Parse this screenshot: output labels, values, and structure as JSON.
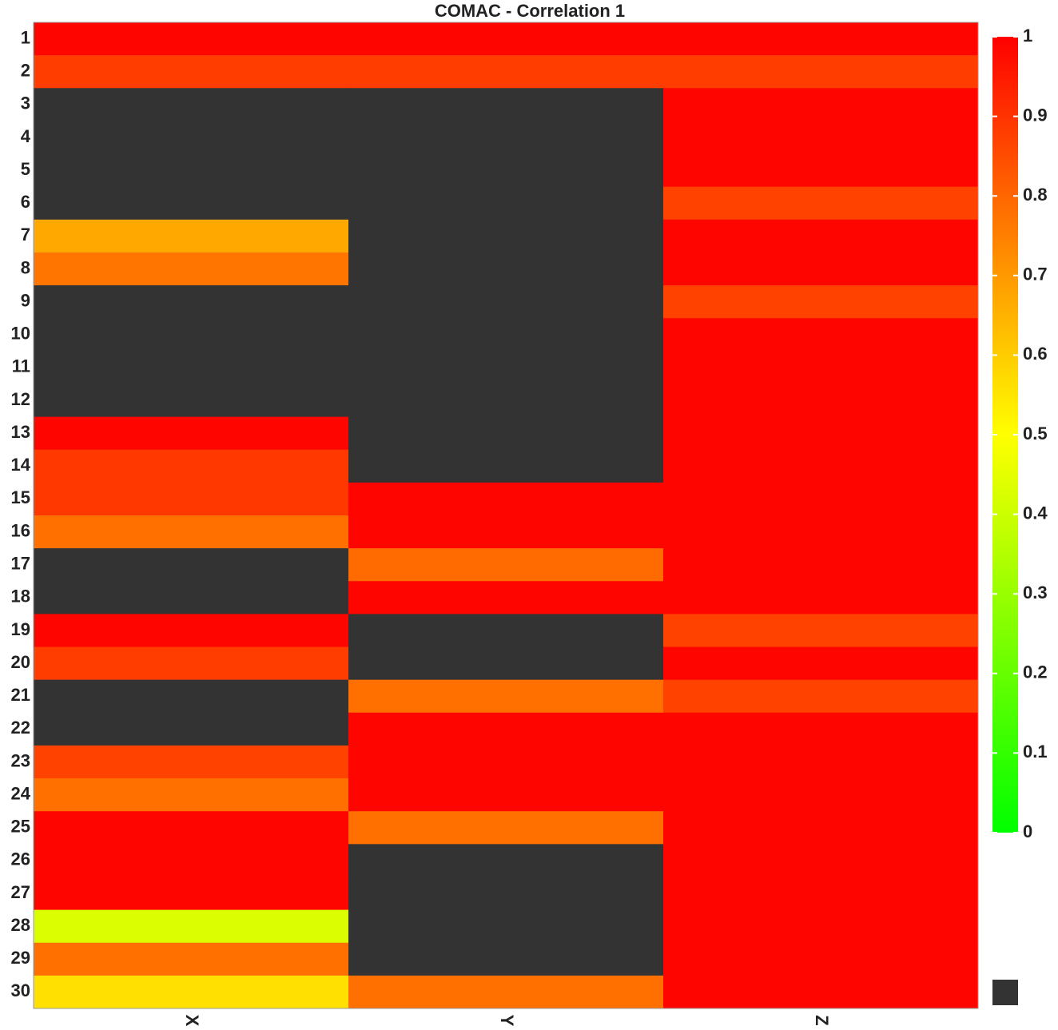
{
  "chart_data": {
    "type": "heatmap",
    "title": "COMAC - Correlation 1",
    "x_categories": [
      "X",
      "Y",
      "Z"
    ],
    "y_categories": [
      "1",
      "2",
      "3",
      "4",
      "5",
      "6",
      "7",
      "8",
      "9",
      "10",
      "11",
      "12",
      "13",
      "14",
      "15",
      "16",
      "17",
      "18",
      "19",
      "20",
      "21",
      "22",
      "23",
      "24",
      "25",
      "26",
      "27",
      "28",
      "29",
      "30"
    ],
    "values": [
      [
        0.99,
        0.99,
        0.99
      ],
      [
        0.88,
        0.88,
        0.88
      ],
      [
        null,
        null,
        0.99
      ],
      [
        null,
        null,
        0.99
      ],
      [
        null,
        null,
        0.99
      ],
      [
        null,
        null,
        0.87
      ],
      [
        0.67,
        null,
        0.99
      ],
      [
        0.77,
        null,
        0.99
      ],
      [
        null,
        null,
        0.87
      ],
      [
        null,
        null,
        0.99
      ],
      [
        null,
        null,
        0.99
      ],
      [
        null,
        null,
        0.99
      ],
      [
        0.99,
        null,
        0.99
      ],
      [
        0.89,
        null,
        0.99
      ],
      [
        0.89,
        0.99,
        0.99
      ],
      [
        0.78,
        0.99,
        0.99
      ],
      [
        null,
        0.79,
        0.99
      ],
      [
        null,
        0.99,
        0.99
      ],
      [
        0.99,
        null,
        0.87
      ],
      [
        0.88,
        null,
        0.99
      ],
      [
        null,
        0.78,
        0.87
      ],
      [
        null,
        0.99,
        0.99
      ],
      [
        0.87,
        0.99,
        0.99
      ],
      [
        0.78,
        0.99,
        0.99
      ],
      [
        0.99,
        0.78,
        0.99
      ],
      [
        0.99,
        null,
        0.99
      ],
      [
        0.99,
        null,
        0.99
      ],
      [
        0.43,
        null,
        0.99
      ],
      [
        0.78,
        null,
        0.99
      ],
      [
        0.56,
        0.78,
        0.99
      ]
    ],
    "colormap": [
      "#00ff00",
      "#ffff00",
      "#ff0000"
    ],
    "null_color": "#333333",
    "zlim": [
      0,
      1
    ],
    "zticks": [
      0,
      0.1,
      0.2,
      0.3,
      0.4,
      0.5,
      0.6,
      0.7,
      0.8,
      0.9,
      1
    ]
  }
}
